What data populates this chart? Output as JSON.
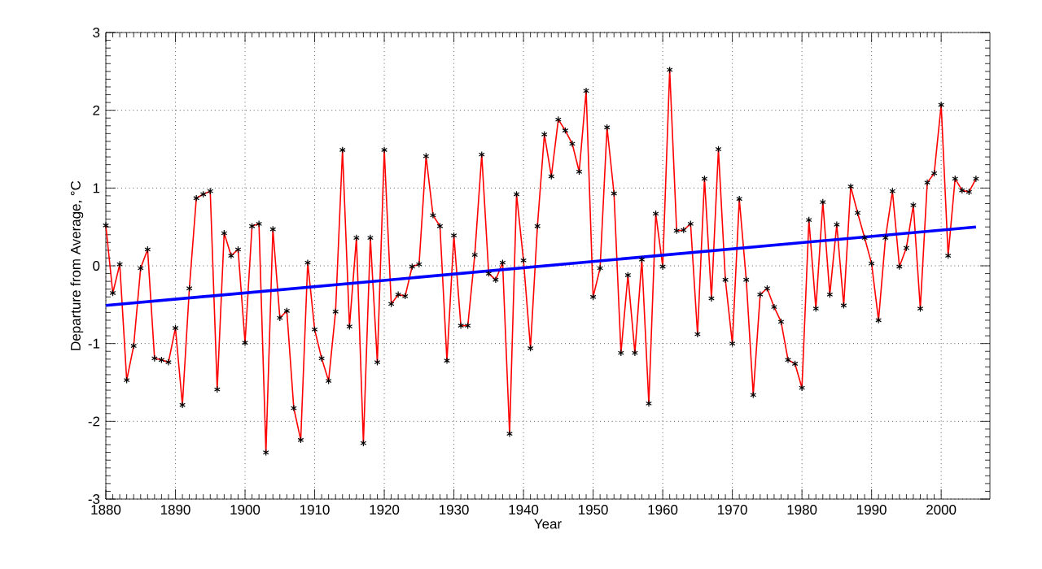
{
  "chart_data": {
    "type": "line",
    "xlabel": "Year",
    "ylabel": "Departure from Average, °C",
    "xlim": [
      1880,
      2007
    ],
    "ylim": [
      -3,
      3
    ],
    "xticks": [
      1880,
      1890,
      1900,
      1910,
      1920,
      1930,
      1940,
      1950,
      1960,
      1970,
      1980,
      1990,
      2000
    ],
    "yticks": [
      -3,
      -2,
      -1,
      0,
      1,
      2,
      3
    ],
    "grid": true,
    "marker": "cross",
    "line_style": "solid",
    "series": [
      {
        "color": "#ff0000",
        "x": [
          1880,
          1881,
          1882,
          1883,
          1884,
          1885,
          1886,
          1887,
          1888,
          1889,
          1890,
          1891,
          1892,
          1893,
          1894,
          1895,
          1896,
          1897,
          1898,
          1899,
          1900,
          1901,
          1902,
          1903,
          1904,
          1905,
          1906,
          1907,
          1908,
          1909,
          1910,
          1911,
          1912,
          1913,
          1914,
          1915,
          1916,
          1917,
          1918,
          1919,
          1920,
          1921,
          1922,
          1923,
          1924,
          1925,
          1926,
          1927,
          1928,
          1929,
          1930,
          1931,
          1932,
          1933,
          1934,
          1935,
          1936,
          1937,
          1938,
          1939,
          1940,
          1941,
          1942,
          1943,
          1944,
          1945,
          1946,
          1947,
          1948,
          1949,
          1950,
          1951,
          1952,
          1953,
          1954,
          1955,
          1956,
          1957,
          1958,
          1959,
          1960,
          1961,
          1962,
          1963,
          1964,
          1965,
          1966,
          1967,
          1968,
          1969,
          1970,
          1971,
          1972,
          1973,
          1974,
          1975,
          1976,
          1977,
          1978,
          1979,
          1980,
          1981,
          1982,
          1983,
          1984,
          1985,
          1986,
          1987,
          1988,
          1989,
          1990,
          1991,
          1992,
          1993,
          1994,
          1995,
          1996,
          1997,
          1998,
          1999,
          2000,
          2001,
          2002,
          2003,
          2004,
          2005
        ],
        "values": [
          0.52,
          -0.35,
          0.02,
          -1.47,
          -1.03,
          -0.03,
          0.21,
          -1.19,
          -1.21,
          -1.24,
          -0.8,
          -1.79,
          -0.29,
          0.87,
          0.92,
          0.96,
          -1.59,
          0.42,
          0.13,
          0.21,
          -0.99,
          0.51,
          0.54,
          -2.4,
          0.47,
          -0.67,
          -0.58,
          -1.83,
          -2.24,
          0.04,
          -0.82,
          -1.19,
          -1.48,
          -0.59,
          1.49,
          -0.78,
          0.36,
          -2.28,
          0.36,
          -1.24,
          1.49,
          -0.49,
          -0.37,
          -0.39,
          -0.01,
          0.02,
          1.41,
          0.65,
          0.51,
          -1.22,
          0.39,
          -0.77,
          -0.77,
          0.14,
          1.43,
          -0.1,
          -0.18,
          0.04,
          -2.16,
          0.92,
          0.07,
          -1.06,
          0.51,
          1.69,
          1.15,
          1.88,
          1.74,
          1.57,
          1.21,
          2.25,
          -0.4,
          -0.03,
          1.78,
          0.93,
          -1.12,
          -0.12,
          -1.12,
          0.08,
          -1.77,
          0.67,
          -0.01,
          2.52,
          0.45,
          0.46,
          0.54,
          -0.88,
          1.12,
          -0.42,
          1.5,
          -0.18,
          -1.0,
          0.86,
          -0.18,
          -1.66,
          -0.37,
          -0.29,
          -0.53,
          -0.72,
          -1.21,
          -1.26,
          -1.57,
          0.59,
          -0.55,
          0.82,
          -0.37,
          0.53,
          -0.51,
          1.02,
          0.68,
          0.36,
          0.03,
          -0.7,
          0.36,
          0.96,
          -0.01,
          0.23,
          0.78,
          -0.55,
          1.07,
          1.19,
          2.07,
          0.13,
          1.12,
          0.97,
          0.95,
          1.12
        ]
      },
      {
        "color": "#0000ff",
        "marker": "none",
        "x": [
          1880,
          2005
        ],
        "values": [
          -0.51,
          0.5
        ]
      }
    ]
  }
}
